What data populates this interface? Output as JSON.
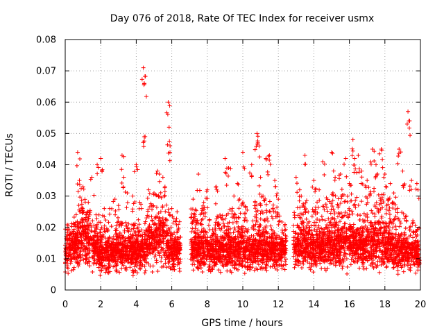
{
  "chart_data": {
    "type": "scatter",
    "title": "Day 076 of 2018, Rate Of TEC Index for receiver usmx",
    "xlabel": "GPS time / hours",
    "ylabel": "ROTI / TECUs",
    "xlim": [
      0,
      20
    ],
    "ylim": [
      0,
      0.08
    ],
    "grid": true,
    "marker": "+",
    "color": "#ff0000",
    "x_ticks": [
      "0",
      "2",
      "4",
      "6",
      "8",
      "10",
      "12",
      "14",
      "16",
      "18",
      "20"
    ],
    "y_ticks": [
      "0",
      "0.01",
      "0.02",
      "0.03",
      "0.04",
      "0.05",
      "0.06",
      "0.07",
      "0.08"
    ],
    "series": [
      {
        "name": "ROTI",
        "x": [
          0.5,
          0.7,
          0.8,
          1.0,
          1.3,
          1.5,
          1.8,
          1.9,
          2.0,
          2.2,
          2.5,
          2.8,
          3.0,
          3.2,
          3.3,
          3.5,
          3.8,
          4.0,
          4.2,
          4.4,
          4.45,
          4.5,
          4.7,
          5.0,
          5.2,
          5.5,
          5.8,
          5.85,
          5.9,
          6.0,
          6.3,
          7.2,
          7.5,
          7.8,
          8.0,
          8.5,
          9.0,
          9.2,
          9.5,
          9.7,
          10.0,
          10.5,
          10.8,
          10.85,
          11.0,
          11.3,
          11.5,
          11.8,
          12.0,
          13.0,
          13.2,
          13.5,
          14.0,
          14.3,
          14.5,
          15.0,
          15.2,
          15.5,
          15.8,
          16.0,
          16.2,
          16.3,
          16.5,
          16.7,
          17.0,
          17.3,
          17.5,
          17.8,
          18.0,
          18.3,
          18.5,
          18.8,
          19.0,
          19.3,
          19.35,
          19.5,
          19.8
        ],
        "y": [
          0.021,
          0.044,
          0.035,
          0.033,
          0.028,
          0.036,
          0.04,
          0.024,
          0.042,
          0.026,
          0.026,
          0.029,
          0.027,
          0.043,
          0.036,
          0.031,
          0.03,
          0.04,
          0.028,
          0.071,
          0.066,
          0.049,
          0.032,
          0.031,
          0.038,
          0.036,
          0.06,
          0.052,
          0.044,
          0.026,
          0.025,
          0.029,
          0.037,
          0.028,
          0.032,
          0.033,
          0.042,
          0.039,
          0.03,
          0.034,
          0.044,
          0.04,
          0.05,
          0.047,
          0.036,
          0.042,
          0.043,
          0.035,
          0.029,
          0.036,
          0.032,
          0.043,
          0.035,
          0.032,
          0.041,
          0.044,
          0.036,
          0.037,
          0.042,
          0.034,
          0.048,
          0.042,
          0.043,
          0.038,
          0.035,
          0.045,
          0.04,
          0.045,
          0.037,
          0.034,
          0.031,
          0.045,
          0.038,
          0.057,
          0.054,
          0.035,
          0.034
        ],
        "dense_band": {
          "x": [
            0.0,
            0.5,
            1.0,
            1.5,
            2.0,
            2.5,
            3.0,
            3.5,
            4.0,
            4.5,
            5.0,
            5.5,
            6.0,
            6.4,
            7.1,
            7.5,
            8.0,
            8.5,
            9.0,
            9.5,
            10.0,
            10.4,
            10.6,
            11.0,
            11.5,
            12.0,
            12.4,
            12.9,
            13.5,
            14.0,
            14.5,
            15.0,
            15.5,
            16.0,
            16.5,
            17.0,
            17.5,
            18.0,
            18.5,
            19.0,
            19.5,
            19.9
          ],
          "low": [
            0.005,
            0.005,
            0.005,
            0.005,
            0.004,
            0.004,
            0.005,
            0.005,
            0.004,
            0.005,
            0.005,
            0.005,
            0.005,
            0.005,
            0.005,
            0.005,
            0.005,
            0.005,
            0.005,
            0.005,
            0.005,
            0.005,
            0.005,
            0.005,
            0.005,
            0.005,
            0.005,
            0.005,
            0.005,
            0.005,
            0.005,
            0.005,
            0.005,
            0.005,
            0.005,
            0.005,
            0.005,
            0.005,
            0.005,
            0.005,
            0.005,
            0.005
          ],
          "mid": [
            0.012,
            0.014,
            0.016,
            0.014,
            0.011,
            0.011,
            0.012,
            0.012,
            0.012,
            0.013,
            0.015,
            0.016,
            0.012,
            0.012,
            0.013,
            0.013,
            0.013,
            0.012,
            0.012,
            0.013,
            0.013,
            0.012,
            0.013,
            0.013,
            0.013,
            0.012,
            0.012,
            0.013,
            0.014,
            0.013,
            0.013,
            0.014,
            0.015,
            0.015,
            0.014,
            0.014,
            0.015,
            0.014,
            0.013,
            0.012,
            0.012,
            0.011
          ],
          "high": [
            0.02,
            0.024,
            0.03,
            0.027,
            0.022,
            0.02,
            0.021,
            0.023,
            0.022,
            0.025,
            0.03,
            0.032,
            0.024,
            0.023,
            0.026,
            0.027,
            0.028,
            0.024,
            0.025,
            0.027,
            0.03,
            0.024,
            0.028,
            0.03,
            0.03,
            0.025,
            0.022,
            0.026,
            0.029,
            0.027,
            0.029,
            0.031,
            0.032,
            0.032,
            0.03,
            0.031,
            0.033,
            0.031,
            0.028,
            0.025,
            0.023,
            0.02
          ]
        }
      }
    ]
  }
}
